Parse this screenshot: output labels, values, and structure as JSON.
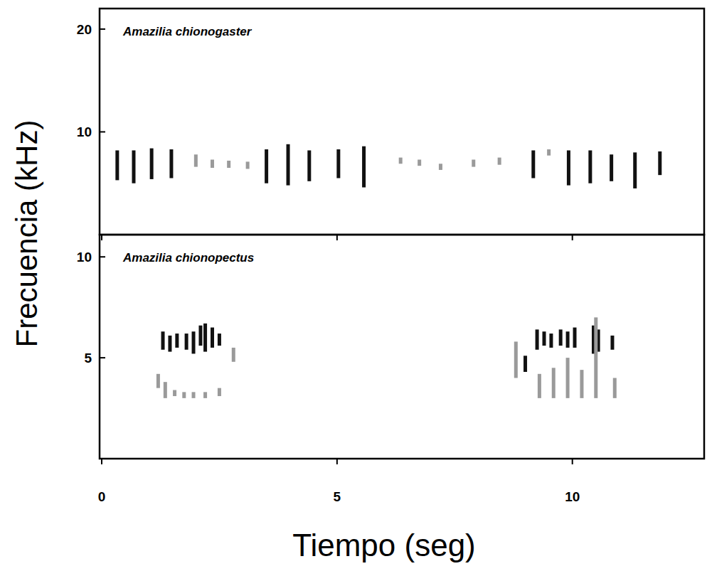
{
  "chart_data": [
    {
      "type": "range",
      "title": "Amazilia chionogaster",
      "ylabel": "Frecuencia (kHz)",
      "xlim": [
        0,
        12.8
      ],
      "ylim": [
        0,
        22
      ],
      "xticks": [
        0,
        5,
        10
      ],
      "yticks": [
        10,
        20
      ],
      "tick_labels": "y",
      "series": [
        {
          "color": "#111111",
          "x": [
            0.33,
            0.68,
            1.06,
            1.48,
            3.5,
            3.96,
            4.41,
            5.03,
            5.57,
            9.17,
            9.92,
            10.38,
            10.83,
            11.33,
            11.86
          ],
          "low": [
            5.3,
            5.0,
            5.4,
            5.5,
            5.0,
            4.8,
            5.2,
            5.5,
            4.6,
            5.5,
            4.8,
            5.0,
            5.2,
            4.5,
            5.8
          ],
          "high": [
            8.2,
            8.2,
            8.4,
            8.3,
            8.3,
            8.8,
            8.2,
            8.3,
            8.6,
            8.2,
            8.2,
            8.2,
            7.8,
            8.0,
            8.1
          ]
        },
        {
          "color": "#9a9a9a",
          "x": [
            2.0,
            2.35,
            2.7,
            3.1,
            6.35,
            6.75,
            7.2,
            7.9,
            8.45,
            9.5
          ],
          "low": [
            6.6,
            6.5,
            6.5,
            6.4,
            6.9,
            6.7,
            6.3,
            6.6,
            6.8,
            7.7
          ],
          "high": [
            7.8,
            7.3,
            7.2,
            7.1,
            7.5,
            7.3,
            6.9,
            7.3,
            7.5,
            8.3
          ]
        }
      ]
    },
    {
      "type": "range",
      "title": "Amazilia chionopectus",
      "xlabel": "Tiempo (seg)",
      "xlim": [
        0,
        12.8
      ],
      "ylim": [
        0,
        11.1
      ],
      "xticks": [
        0,
        5,
        10
      ],
      "yticks": [
        5,
        10
      ],
      "series": [
        {
          "color": "#111111",
          "x": [
            1.3,
            1.45,
            1.6,
            1.8,
            1.95,
            2.1,
            2.2,
            2.35,
            2.5,
            9.0,
            9.25,
            9.4,
            9.55,
            9.75,
            9.9,
            10.05,
            10.45,
            10.55,
            10.85
          ],
          "low": [
            5.4,
            5.3,
            5.5,
            5.4,
            5.2,
            5.6,
            5.3,
            5.5,
            5.6,
            4.3,
            5.4,
            5.6,
            5.5,
            5.6,
            5.5,
            5.5,
            5.2,
            5.3,
            5.4
          ],
          "high": [
            6.3,
            6.1,
            6.2,
            6.2,
            6.3,
            6.6,
            6.7,
            6.5,
            6.2,
            5.1,
            6.4,
            6.3,
            6.2,
            6.4,
            6.3,
            6.5,
            6.6,
            6.4,
            6.1
          ]
        },
        {
          "color": "#9a9a9a",
          "x": [
            1.2,
            1.35,
            1.55,
            1.75,
            1.95,
            2.2,
            2.5,
            2.8,
            8.8,
            9.3,
            9.6,
            9.9,
            10.2,
            10.5,
            10.9
          ],
          "low": [
            3.5,
            3.0,
            3.1,
            3.0,
            3.0,
            3.0,
            3.1,
            4.8,
            4.0,
            3.0,
            3.0,
            3.0,
            3.0,
            3.0,
            3.0
          ],
          "high": [
            4.2,
            3.8,
            3.4,
            3.3,
            3.3,
            3.3,
            3.5,
            5.5,
            5.8,
            4.2,
            4.5,
            5.0,
            4.4,
            7.0,
            4.0
          ]
        }
      ]
    }
  ]
}
